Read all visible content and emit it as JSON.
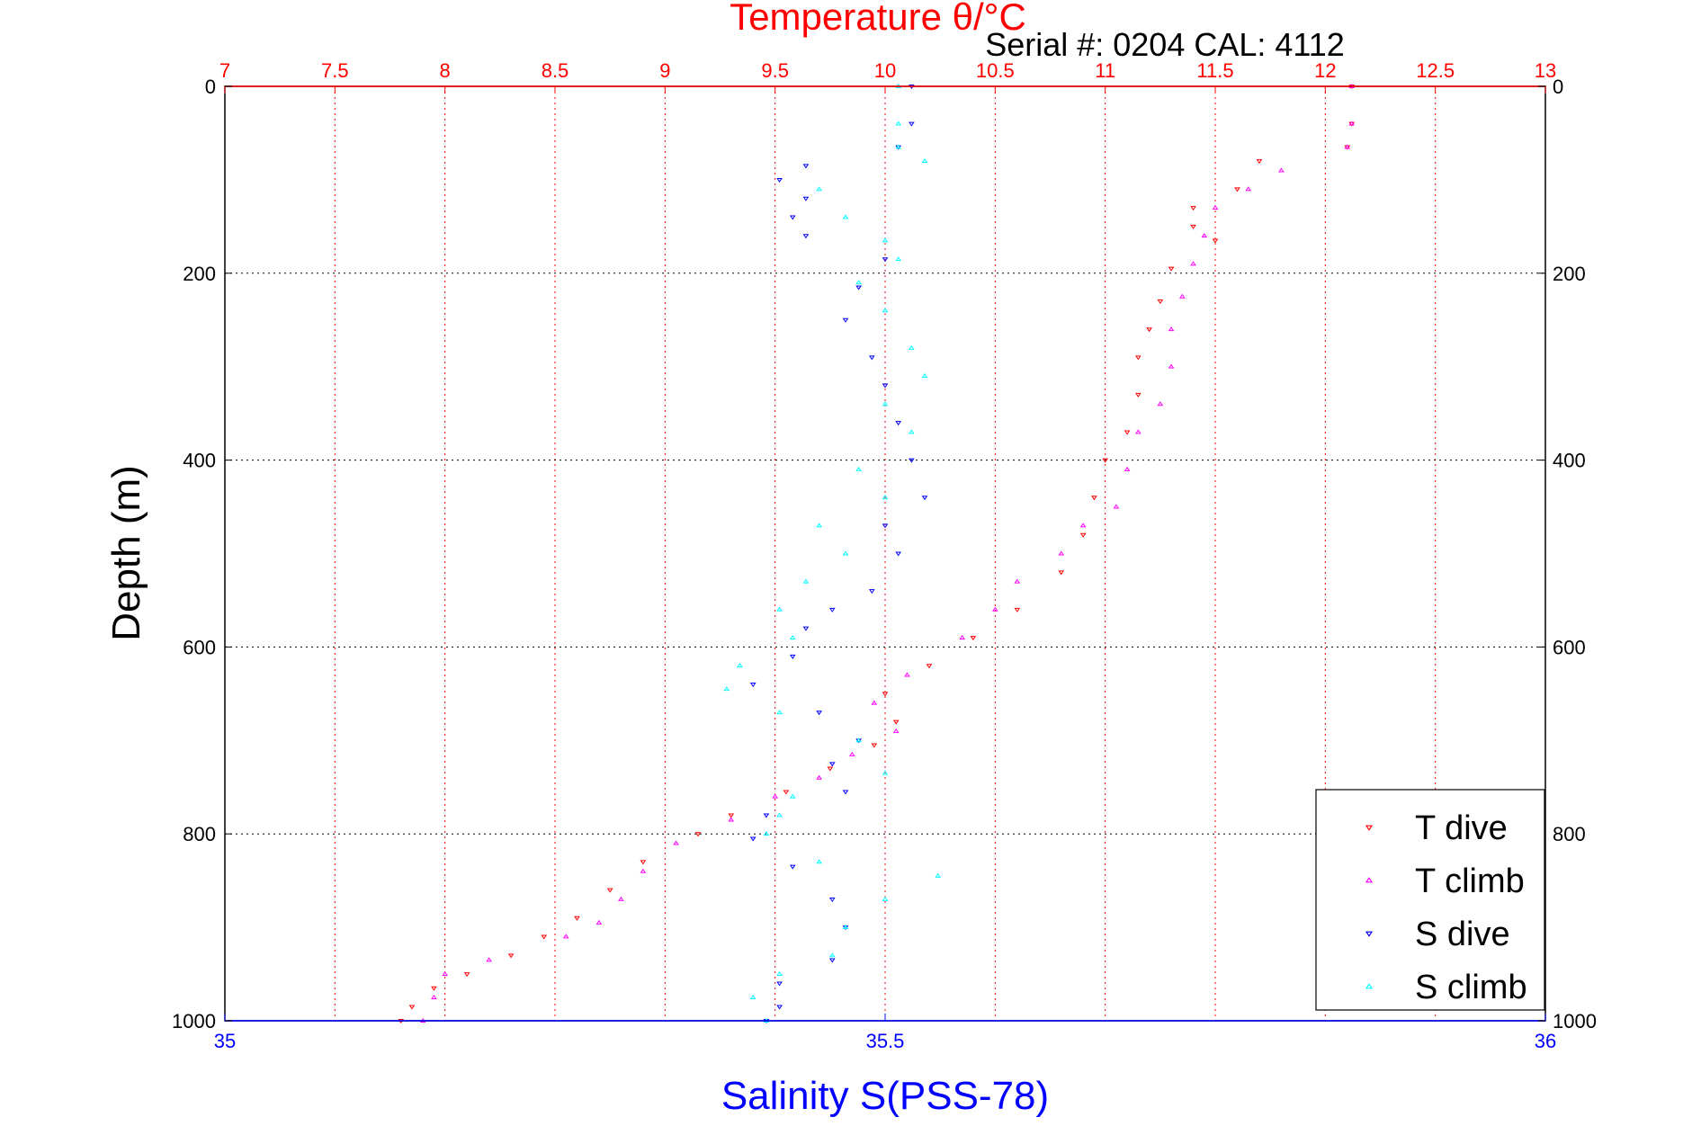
{
  "chart_data": {
    "type": "scatter",
    "title": "Temperature θ/°C",
    "subtitle": "Serial #: 0204  CAL: 4112",
    "xlabel_top": "Temperature θ/°C",
    "xlabel_bottom": "Salinity S(PSS-78)",
    "ylabel": "Depth (m)",
    "x_top": {
      "lim": [
        7,
        13
      ],
      "ticks": [
        7,
        7.5,
        8,
        8.5,
        9,
        9.5,
        10,
        10.5,
        11,
        11.5,
        12,
        12.5,
        13
      ],
      "tick_labels": [
        "7",
        "7.5",
        "8",
        "8.5",
        "9",
        "9.5",
        "10",
        "10.5",
        "11",
        "11.5",
        "12",
        "12.5",
        "13"
      ]
    },
    "x_bottom": {
      "lim": [
        35,
        36
      ],
      "ticks": [
        35,
        35.5,
        36
      ],
      "tick_labels": [
        "35",
        "35.5",
        "36"
      ]
    },
    "y": {
      "lim": [
        0,
        1000
      ],
      "reversed": true,
      "ticks": [
        0,
        200,
        400,
        600,
        800,
        1000
      ],
      "tick_labels": [
        "0",
        "200",
        "400",
        "600",
        "800",
        "1000"
      ]
    },
    "grid": true,
    "legend_position": "bottom-right",
    "colors": {
      "title": "#ff0000",
      "salinity_axis": "#0000ff",
      "frame": "#000000",
      "grid": "#000000"
    },
    "series": [
      {
        "name": "T dive",
        "axis": "top",
        "marker": "triangle-down",
        "color": "#ff0000",
        "points": [
          [
            12.12,
            0
          ],
          [
            12.12,
            40
          ],
          [
            12.1,
            65
          ],
          [
            11.7,
            80
          ],
          [
            11.6,
            110
          ],
          [
            11.4,
            130
          ],
          [
            11.4,
            150
          ],
          [
            11.5,
            165
          ],
          [
            11.3,
            195
          ],
          [
            11.25,
            230
          ],
          [
            11.2,
            260
          ],
          [
            11.15,
            290
          ],
          [
            11.15,
            330
          ],
          [
            11.1,
            370
          ],
          [
            11.0,
            400
          ],
          [
            10.95,
            440
          ],
          [
            10.9,
            480
          ],
          [
            10.8,
            520
          ],
          [
            10.6,
            560
          ],
          [
            10.4,
            590
          ],
          [
            10.2,
            620
          ],
          [
            10.0,
            650
          ],
          [
            10.05,
            680
          ],
          [
            9.95,
            705
          ],
          [
            9.75,
            730
          ],
          [
            9.55,
            755
          ],
          [
            9.3,
            780
          ],
          [
            9.15,
            800
          ],
          [
            8.9,
            830
          ],
          [
            8.75,
            860
          ],
          [
            8.6,
            890
          ],
          [
            8.45,
            910
          ],
          [
            8.3,
            930
          ],
          [
            8.1,
            950
          ],
          [
            7.95,
            965
          ],
          [
            7.85,
            985
          ],
          [
            7.8,
            1000
          ]
        ]
      },
      {
        "name": "T climb",
        "axis": "top",
        "marker": "triangle-up",
        "color": "#ff00ff",
        "points": [
          [
            12.12,
            0
          ],
          [
            12.12,
            40
          ],
          [
            12.1,
            65
          ],
          [
            11.8,
            90
          ],
          [
            11.65,
            110
          ],
          [
            11.5,
            130
          ],
          [
            11.45,
            160
          ],
          [
            11.4,
            190
          ],
          [
            11.35,
            225
          ],
          [
            11.3,
            260
          ],
          [
            11.3,
            300
          ],
          [
            11.25,
            340
          ],
          [
            11.15,
            370
          ],
          [
            11.1,
            410
          ],
          [
            11.05,
            450
          ],
          [
            10.9,
            470
          ],
          [
            10.8,
            500
          ],
          [
            10.6,
            530
          ],
          [
            10.5,
            560
          ],
          [
            10.35,
            590
          ],
          [
            10.1,
            630
          ],
          [
            9.95,
            660
          ],
          [
            10.05,
            690
          ],
          [
            9.85,
            715
          ],
          [
            9.7,
            740
          ],
          [
            9.5,
            760
          ],
          [
            9.3,
            785
          ],
          [
            9.05,
            810
          ],
          [
            8.9,
            840
          ],
          [
            8.8,
            870
          ],
          [
            8.7,
            895
          ],
          [
            8.55,
            910
          ],
          [
            8.2,
            935
          ],
          [
            8.0,
            950
          ],
          [
            7.95,
            975
          ],
          [
            7.9,
            1000
          ]
        ]
      },
      {
        "name": "S dive",
        "axis": "bottom",
        "marker": "triangle-down",
        "color": "#0000ff",
        "points": [
          [
            35.52,
            0
          ],
          [
            35.52,
            40
          ],
          [
            35.51,
            65
          ],
          [
            35.44,
            85
          ],
          [
            35.42,
            100
          ],
          [
            35.44,
            120
          ],
          [
            35.43,
            140
          ],
          [
            35.44,
            160
          ],
          [
            35.5,
            185
          ],
          [
            35.48,
            215
          ],
          [
            35.47,
            250
          ],
          [
            35.49,
            290
          ],
          [
            35.5,
            320
          ],
          [
            35.51,
            360
          ],
          [
            35.52,
            400
          ],
          [
            35.53,
            440
          ],
          [
            35.5,
            470
          ],
          [
            35.51,
            500
          ],
          [
            35.49,
            540
          ],
          [
            35.46,
            560
          ],
          [
            35.44,
            580
          ],
          [
            35.43,
            610
          ],
          [
            35.4,
            640
          ],
          [
            35.45,
            670
          ],
          [
            35.48,
            700
          ],
          [
            35.46,
            725
          ],
          [
            35.47,
            755
          ],
          [
            35.41,
            780
          ],
          [
            35.4,
            805
          ],
          [
            35.43,
            835
          ],
          [
            35.46,
            870
          ],
          [
            35.47,
            900
          ],
          [
            35.46,
            935
          ],
          [
            35.42,
            960
          ],
          [
            35.42,
            985
          ],
          [
            35.41,
            1000
          ]
        ]
      },
      {
        "name": "S climb",
        "axis": "bottom",
        "marker": "triangle-up",
        "color": "#00ffff",
        "points": [
          [
            35.51,
            0
          ],
          [
            35.51,
            40
          ],
          [
            35.51,
            65
          ],
          [
            35.53,
            80
          ],
          [
            35.45,
            110
          ],
          [
            35.47,
            140
          ],
          [
            35.5,
            165
          ],
          [
            35.51,
            185
          ],
          [
            35.48,
            210
          ],
          [
            35.5,
            240
          ],
          [
            35.52,
            280
          ],
          [
            35.53,
            310
          ],
          [
            35.5,
            340
          ],
          [
            35.52,
            370
          ],
          [
            35.48,
            410
          ],
          [
            35.5,
            440
          ],
          [
            35.45,
            470
          ],
          [
            35.47,
            500
          ],
          [
            35.44,
            530
          ],
          [
            35.42,
            560
          ],
          [
            35.43,
            590
          ],
          [
            35.39,
            620
          ],
          [
            35.38,
            645
          ],
          [
            35.42,
            670
          ],
          [
            35.48,
            700
          ],
          [
            35.5,
            735
          ],
          [
            35.43,
            760
          ],
          [
            35.42,
            780
          ],
          [
            35.41,
            800
          ],
          [
            35.45,
            830
          ],
          [
            35.54,
            845
          ],
          [
            35.5,
            870
          ],
          [
            35.47,
            900
          ],
          [
            35.46,
            930
          ],
          [
            35.42,
            950
          ],
          [
            35.4,
            975
          ],
          [
            35.41,
            1000
          ]
        ]
      }
    ]
  }
}
